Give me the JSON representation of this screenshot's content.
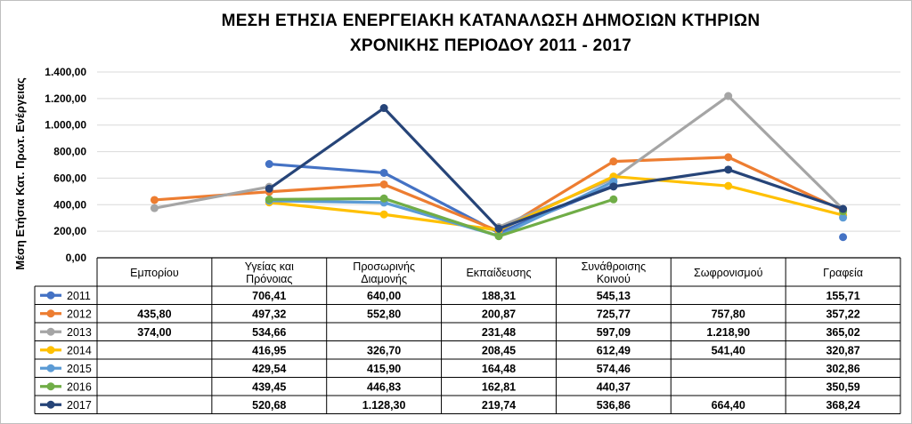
{
  "chart_data": {
    "type": "line",
    "title": [
      "ΜΕΣΗ ΕΤΗΣΙΑ ΕΝΕΡΓΕΙΑΚΗ ΚΑΤΑΝΑΛΩΣΗ ΔΗΜΟΣΙΩΝ ΚΤΗΡΙΩΝ",
      "ΧΡΟΝΙΚΗΣ ΠΕΡΙΟΔΟΥ 2011 - 2017"
    ],
    "ylabel": "Μέση Ετήσια Κατ. Πρωτ. Ενέργειας",
    "ylim": [
      0,
      1400
    ],
    "yticks": [
      0,
      200,
      400,
      600,
      800,
      1000,
      1200,
      1400
    ],
    "ytick_labels": [
      "0,00",
      "200,00",
      "400,00",
      "600,00",
      "800,00",
      "1.000,00",
      "1.200,00",
      "1.400,00"
    ],
    "grid": true,
    "categories": [
      [
        "Εμπορίου"
      ],
      [
        "Υγείας και",
        "Πρόνοιας"
      ],
      [
        "Προσωρινής",
        "Διαμονής"
      ],
      [
        "Εκπαίδευσης"
      ],
      [
        "Συνάθροισης",
        "Κοινού"
      ],
      [
        "Σωφρονισμού"
      ],
      [
        "Γραφεία"
      ]
    ],
    "series": [
      {
        "name": "2011",
        "color": "#4472c4",
        "values": [
          null,
          706.41,
          640.0,
          188.31,
          545.13,
          null,
          155.71
        ],
        "labels": [
          "",
          "706,41",
          "640,00",
          "188,31",
          "545,13",
          "",
          "155,71"
        ]
      },
      {
        "name": "2012",
        "color": "#ed7d31",
        "values": [
          435.8,
          497.32,
          552.8,
          200.87,
          725.77,
          757.8,
          357.22
        ],
        "labels": [
          "435,80",
          "497,32",
          "552,80",
          "200,87",
          "725,77",
          "757,80",
          "357,22"
        ]
      },
      {
        "name": "2013",
        "color": "#a5a5a5",
        "values": [
          374.0,
          534.66,
          null,
          231.48,
          597.09,
          1218.9,
          365.02
        ],
        "labels": [
          "374,00",
          "534,66",
          "",
          "231,48",
          "597,09",
          "1.218,90",
          "365,02"
        ]
      },
      {
        "name": "2014",
        "color": "#ffc000",
        "values": [
          null,
          416.95,
          326.7,
          208.45,
          612.49,
          541.4,
          320.87
        ],
        "labels": [
          "",
          "416,95",
          "326,70",
          "208,45",
          "612,49",
          "541,40",
          "320,87"
        ]
      },
      {
        "name": "2015",
        "color": "#5b9bd5",
        "values": [
          null,
          429.54,
          415.9,
          164.48,
          574.46,
          null,
          302.86
        ],
        "labels": [
          "",
          "429,54",
          "415,90",
          "164,48",
          "574,46",
          "",
          "302,86"
        ]
      },
      {
        "name": "2016",
        "color": "#70ad47",
        "values": [
          null,
          439.45,
          446.83,
          162.81,
          440.37,
          null,
          350.59
        ],
        "labels": [
          "",
          "439,45",
          "446,83",
          "162,81",
          "440,37",
          "",
          "350,59"
        ]
      },
      {
        "name": "2017",
        "color": "#264478",
        "values": [
          null,
          520.68,
          1128.3,
          219.74,
          536.86,
          664.4,
          368.24
        ],
        "labels": [
          "",
          "520,68",
          "1.128,30",
          "219,74",
          "536,86",
          "664,40",
          "368,24"
        ]
      }
    ]
  }
}
